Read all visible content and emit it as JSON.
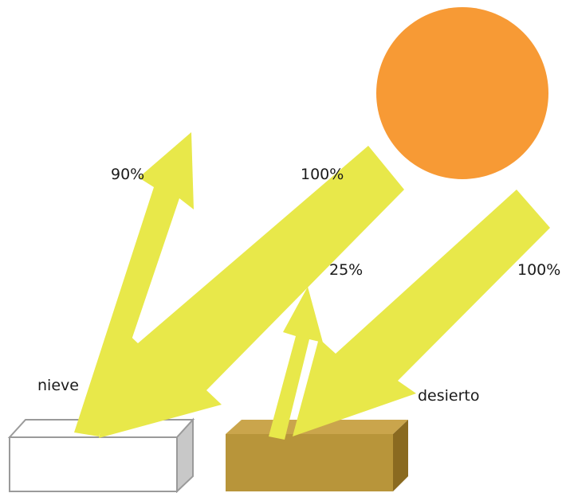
{
  "colors": {
    "sun": "#f79a35",
    "arrow": "#e8e84a",
    "snow_box_front": "#ffffff",
    "snow_box_side": "#c8c8c8",
    "snow_box_outline": "#9a9a9a",
    "desert_box_front": "#b8953a",
    "desert_box_top": "#caa54c",
    "desert_box_side": "#8a6a20"
  },
  "labels": {
    "reflect_snow": "90%",
    "incoming_snow": "100%",
    "incoming_desert": "100%",
    "reflect_desert": "25%",
    "snow": "nieve",
    "desert": "desierto"
  }
}
